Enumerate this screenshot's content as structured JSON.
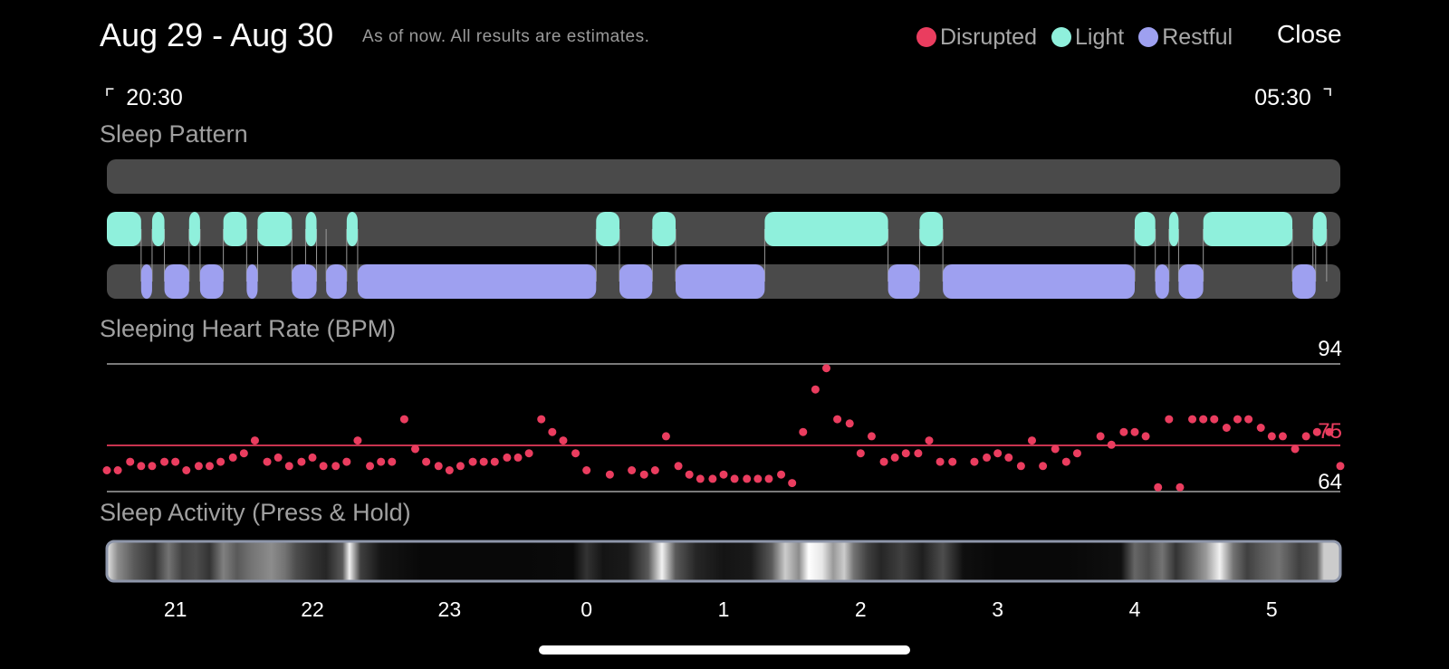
{
  "header": {
    "title": "Aug 29 - Aug 30",
    "subtitle": "As of now. All results are estimates.",
    "close_label": "Close"
  },
  "legend": [
    {
      "label": "Disrupted",
      "color": "#ea3d5f"
    },
    {
      "label": "Light",
      "color": "#8ff0dc"
    },
    {
      "label": "Restful",
      "color": "#9ea0f0"
    }
  ],
  "time_range": {
    "start": "20:30",
    "end": "05:30"
  },
  "sleep_pattern": {
    "title": "Sleep Pattern",
    "disrupted": [],
    "light": [
      [
        20.5,
        20.75
      ],
      [
        20.83,
        20.92
      ],
      [
        21.1,
        21.18
      ],
      [
        21.35,
        21.52
      ],
      [
        21.6,
        21.85
      ],
      [
        21.95,
        22.03
      ],
      [
        22.25,
        22.33
      ],
      [
        24.07,
        24.24
      ],
      [
        24.48,
        24.65
      ],
      [
        25.3,
        26.2
      ],
      [
        26.43,
        26.6
      ],
      [
        28.0,
        28.15
      ],
      [
        28.25,
        28.32
      ],
      [
        28.5,
        29.15
      ],
      [
        29.3,
        29.4
      ]
    ],
    "restful": [
      [
        20.75,
        20.83
      ],
      [
        20.92,
        21.1
      ],
      [
        21.18,
        21.35
      ],
      [
        21.52,
        21.6
      ],
      [
        21.85,
        22.03
      ],
      [
        22.1,
        22.25
      ],
      [
        22.33,
        24.07
      ],
      [
        24.24,
        24.48
      ],
      [
        24.65,
        25.3
      ],
      [
        26.2,
        26.43
      ],
      [
        26.6,
        28.0
      ],
      [
        28.15,
        28.25
      ],
      [
        28.32,
        28.5
      ],
      [
        29.15,
        29.32
      ]
    ],
    "colors": {
      "track": "#4a4a4a",
      "light": "#8ff0dc",
      "restful": "#9ea0f0"
    }
  },
  "heart_rate": {
    "title": "Sleeping Heart Rate (BPM)",
    "max_label": "94",
    "avg_label": "75",
    "min_label": "64",
    "max": 94,
    "avg": 75,
    "min": 64,
    "point_color": "#ea3d5f",
    "points": [
      [
        20.5,
        69
      ],
      [
        20.58,
        69
      ],
      [
        20.67,
        71
      ],
      [
        20.75,
        70
      ],
      [
        20.83,
        70
      ],
      [
        20.92,
        71
      ],
      [
        21.0,
        71
      ],
      [
        21.08,
        69
      ],
      [
        21.17,
        70
      ],
      [
        21.25,
        70
      ],
      [
        21.33,
        71
      ],
      [
        21.42,
        72
      ],
      [
        21.5,
        73
      ],
      [
        21.58,
        76
      ],
      [
        21.67,
        71
      ],
      [
        21.75,
        72
      ],
      [
        21.83,
        70
      ],
      [
        21.92,
        71
      ],
      [
        22.0,
        72
      ],
      [
        22.08,
        70
      ],
      [
        22.17,
        70
      ],
      [
        22.25,
        71
      ],
      [
        22.33,
        76
      ],
      [
        22.42,
        70
      ],
      [
        22.5,
        71
      ],
      [
        22.58,
        71
      ],
      [
        22.67,
        81
      ],
      [
        22.75,
        74
      ],
      [
        22.83,
        71
      ],
      [
        22.92,
        70
      ],
      [
        23.0,
        69
      ],
      [
        23.08,
        70
      ],
      [
        23.17,
        71
      ],
      [
        23.25,
        71
      ],
      [
        23.33,
        71
      ],
      [
        23.42,
        72
      ],
      [
        23.5,
        72
      ],
      [
        23.58,
        73
      ],
      [
        23.67,
        81
      ],
      [
        23.75,
        78
      ],
      [
        23.83,
        76
      ],
      [
        23.92,
        73
      ],
      [
        24.0,
        69
      ],
      [
        24.17,
        68
      ],
      [
        24.33,
        69
      ],
      [
        24.42,
        68
      ],
      [
        24.5,
        69
      ],
      [
        24.58,
        77
      ],
      [
        24.67,
        70
      ],
      [
        24.75,
        68
      ],
      [
        24.83,
        67
      ],
      [
        24.92,
        67
      ],
      [
        25.0,
        68
      ],
      [
        25.08,
        67
      ],
      [
        25.17,
        67
      ],
      [
        25.25,
        67
      ],
      [
        25.33,
        67
      ],
      [
        25.42,
        68
      ],
      [
        25.5,
        66
      ],
      [
        25.58,
        78
      ],
      [
        25.67,
        88
      ],
      [
        25.75,
        93
      ],
      [
        25.83,
        81
      ],
      [
        25.92,
        80
      ],
      [
        26.0,
        73
      ],
      [
        26.08,
        77
      ],
      [
        26.17,
        71
      ],
      [
        26.25,
        72
      ],
      [
        26.33,
        73
      ],
      [
        26.42,
        73
      ],
      [
        26.5,
        76
      ],
      [
        26.58,
        71
      ],
      [
        26.67,
        71
      ],
      [
        26.83,
        71
      ],
      [
        26.92,
        72
      ],
      [
        27.0,
        73
      ],
      [
        27.08,
        72
      ],
      [
        27.17,
        70
      ],
      [
        27.25,
        76
      ],
      [
        27.33,
        70
      ],
      [
        27.42,
        74
      ],
      [
        27.5,
        71
      ],
      [
        27.58,
        73
      ],
      [
        27.75,
        77
      ],
      [
        27.83,
        75
      ],
      [
        27.92,
        78
      ],
      [
        28.0,
        78
      ],
      [
        28.08,
        77
      ],
      [
        28.17,
        65
      ],
      [
        28.25,
        81
      ],
      [
        28.33,
        65
      ],
      [
        28.42,
        81
      ],
      [
        28.5,
        81
      ],
      [
        28.58,
        81
      ],
      [
        28.67,
        79
      ],
      [
        28.75,
        81
      ],
      [
        28.83,
        81
      ],
      [
        28.92,
        79
      ],
      [
        29.0,
        77
      ],
      [
        29.08,
        77
      ],
      [
        29.17,
        74
      ],
      [
        29.25,
        77
      ],
      [
        29.33,
        78
      ],
      [
        29.42,
        78
      ],
      [
        29.5,
        70
      ]
    ]
  },
  "sleep_activity": {
    "title": "Sleep Activity (Press & Hold)",
    "intensity": [
      [
        20.5,
        0.9
      ],
      [
        20.58,
        0.55
      ],
      [
        20.7,
        0.35
      ],
      [
        20.85,
        0.2
      ],
      [
        20.95,
        0.45
      ],
      [
        21.05,
        0.25
      ],
      [
        21.15,
        0.3
      ],
      [
        21.25,
        0.2
      ],
      [
        21.35,
        0.5
      ],
      [
        21.45,
        0.35
      ],
      [
        21.55,
        0.45
      ],
      [
        21.7,
        0.55
      ],
      [
        21.8,
        0.45
      ],
      [
        21.88,
        0.3
      ],
      [
        22.0,
        0.2
      ],
      [
        22.1,
        0.15
      ],
      [
        22.22,
        0.35
      ],
      [
        22.27,
        0.95
      ],
      [
        22.35,
        0.25
      ],
      [
        22.5,
        0.08
      ],
      [
        22.8,
        0.03
      ],
      [
        23.5,
        0.03
      ],
      [
        23.9,
        0.04
      ],
      [
        24.0,
        0.2
      ],
      [
        24.12,
        0.08
      ],
      [
        24.3,
        0.1
      ],
      [
        24.45,
        0.35
      ],
      [
        24.55,
        0.95
      ],
      [
        24.65,
        0.35
      ],
      [
        24.8,
        0.15
      ],
      [
        25.0,
        0.08
      ],
      [
        25.2,
        0.1
      ],
      [
        25.35,
        0.35
      ],
      [
        25.45,
        0.8
      ],
      [
        25.55,
        0.55
      ],
      [
        25.62,
        1.0
      ],
      [
        25.72,
        0.9
      ],
      [
        25.8,
        0.6
      ],
      [
        25.88,
        0.8
      ],
      [
        25.95,
        0.45
      ],
      [
        26.05,
        0.25
      ],
      [
        26.15,
        0.15
      ],
      [
        26.3,
        0.25
      ],
      [
        26.45,
        0.12
      ],
      [
        26.6,
        0.3
      ],
      [
        26.75,
        0.06
      ],
      [
        27.0,
        0.03
      ],
      [
        27.5,
        0.03
      ],
      [
        27.9,
        0.06
      ],
      [
        28.0,
        0.4
      ],
      [
        28.1,
        0.3
      ],
      [
        28.2,
        0.45
      ],
      [
        28.3,
        0.2
      ],
      [
        28.42,
        0.4
      ],
      [
        28.52,
        0.6
      ],
      [
        28.62,
        0.95
      ],
      [
        28.72,
        0.45
      ],
      [
        28.82,
        0.25
      ],
      [
        28.92,
        0.35
      ],
      [
        29.05,
        0.45
      ],
      [
        29.2,
        0.25
      ],
      [
        29.33,
        0.35
      ],
      [
        29.38,
        0.8
      ]
    ],
    "border_color": "#8e96aa"
  },
  "axis": {
    "ticks": [
      {
        "value": 21,
        "label": "21"
      },
      {
        "value": 22,
        "label": "22"
      },
      {
        "value": 23,
        "label": "23"
      },
      {
        "value": 24,
        "label": "0"
      },
      {
        "value": 25,
        "label": "1"
      },
      {
        "value": 26,
        "label": "2"
      },
      {
        "value": 27,
        "label": "3"
      },
      {
        "value": 28,
        "label": "4"
      },
      {
        "value": 29,
        "label": "5"
      }
    ]
  }
}
